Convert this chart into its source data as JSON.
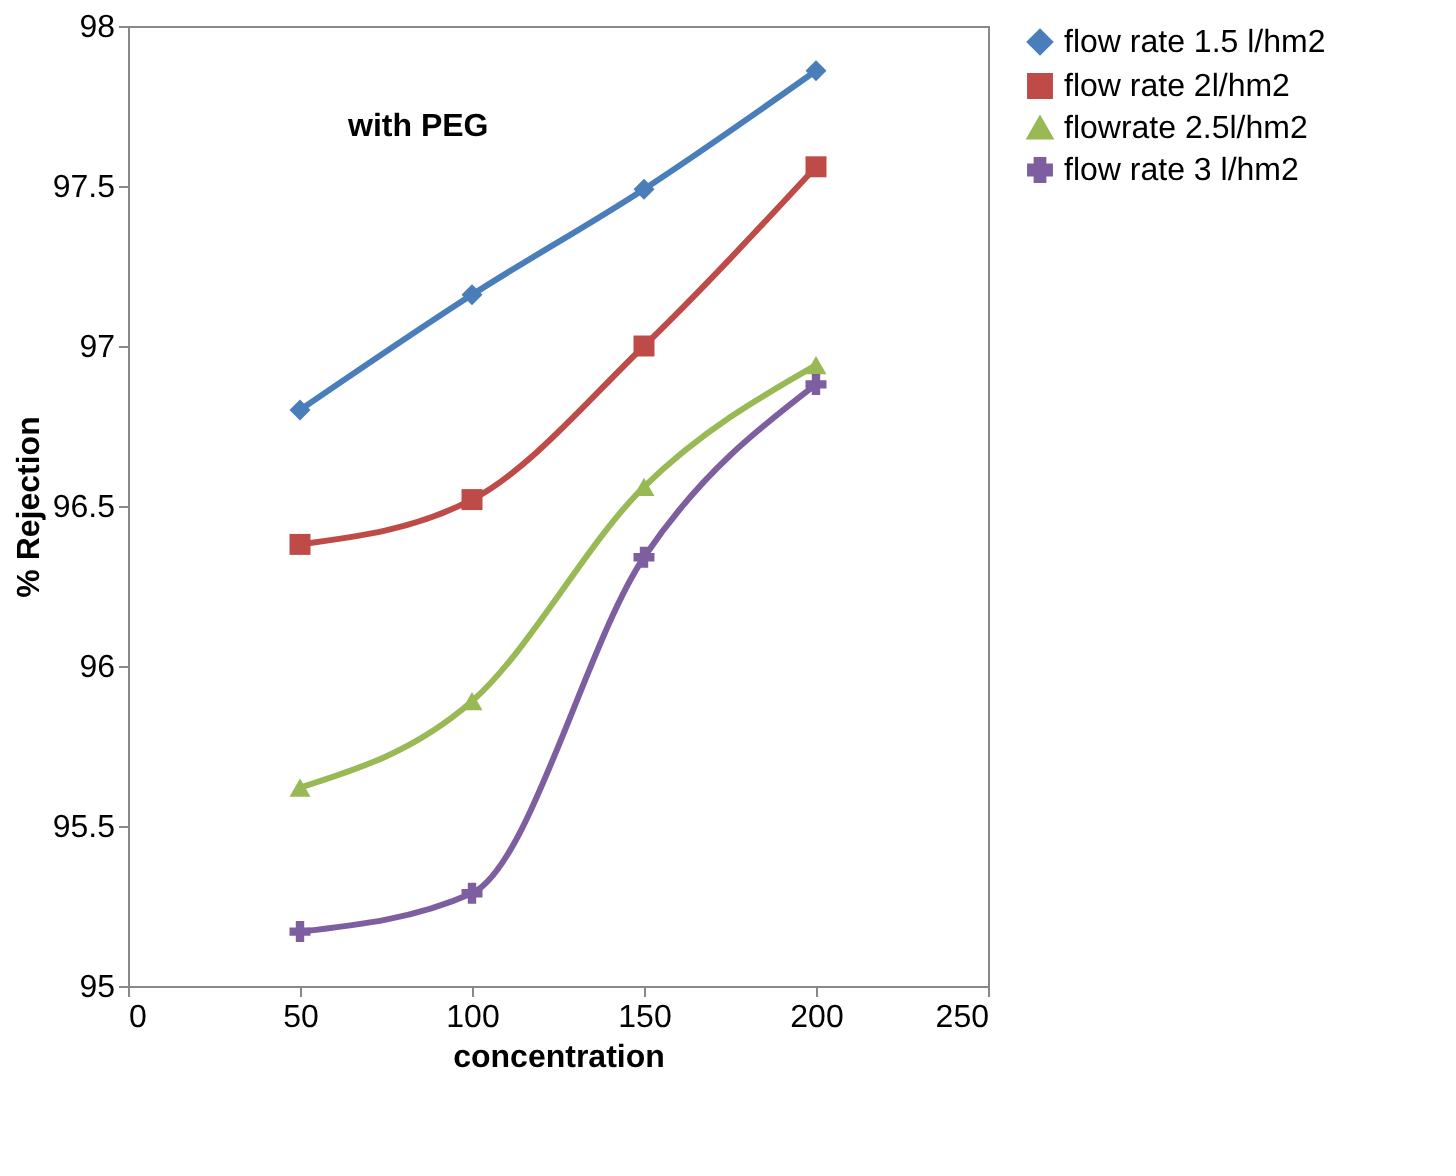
{
  "chart_data": {
    "type": "line",
    "xlabel": "concentration",
    "ylabel": "% Rejection",
    "annotations": [
      "with PEG"
    ],
    "x": [
      50,
      100,
      150,
      200
    ],
    "series": [
      {
        "name": "flow rate 1.5 l/hm2",
        "color": "#4a7ebb",
        "marker": "diamond",
        "values": [
          96.8,
          97.16,
          97.49,
          97.86
        ]
      },
      {
        "name": "flow rate 2l/hm2",
        "color": "#be4b48",
        "marker": "square",
        "values": [
          96.38,
          96.52,
          97.0,
          97.56
        ]
      },
      {
        "name": "flowrate 2.5l/hm2",
        "color": "#98b954",
        "marker": "triangle",
        "values": [
          95.62,
          95.89,
          96.56,
          96.94
        ]
      },
      {
        "name": "flow rate 3 l/hm2",
        "color": "#7d5fa0",
        "marker": "cross",
        "values": [
          95.17,
          95.29,
          96.34,
          96.88
        ]
      }
    ],
    "xlim": [
      0,
      250
    ],
    "xticks": [
      0,
      50,
      100,
      150,
      200,
      250
    ],
    "ylim": [
      95,
      98
    ],
    "yticks": [
      95,
      95.5,
      96,
      96.5,
      97,
      97.5,
      98
    ],
    "grid": false,
    "legend": "right",
    "line_style": "solid"
  }
}
